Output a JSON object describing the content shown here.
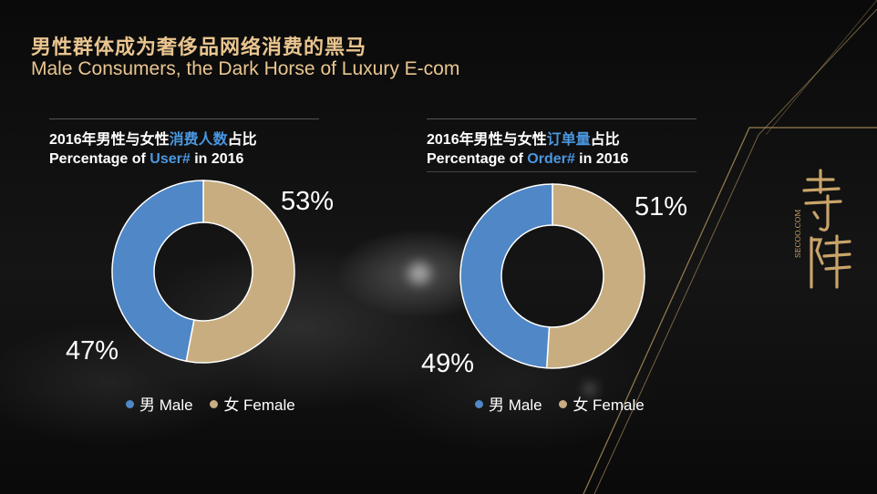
{
  "title": {
    "cn": "男性群体成为奢侈品网络消费的黑马",
    "en": "Male Consumers, the Dark Horse of Luxury E-com"
  },
  "colors": {
    "male": "#4f87c7",
    "female": "#c8ad80",
    "gold": "#e9c58f",
    "highlight": "#4b97e0"
  },
  "charts": [
    {
      "heading_cn_pre": "2016年男性与女性",
      "heading_cn_hl": "消费人数",
      "heading_cn_post": "占比",
      "heading_en_pre": "Percentage of ",
      "heading_en_hl": "User#",
      "heading_en_post": " in 2016",
      "male_label": "47%",
      "female_label": "53%",
      "legend_male": "男 Male",
      "legend_female": "女 Female"
    },
    {
      "heading_cn_pre": "2016年男性与女性",
      "heading_cn_hl": "订单量",
      "heading_cn_post": "占比",
      "heading_en_pre": "Percentage of ",
      "heading_en_hl": "Order#",
      "heading_en_post": " in 2016",
      "male_label": "49%",
      "female_label": "51%",
      "legend_male": "男 Male",
      "legend_female": "女 Female"
    }
  ],
  "chart_data": [
    {
      "type": "pie",
      "title": "2016年男性与女性消费人数占比 / Percentage of User# in 2016",
      "categories": [
        "男 Male",
        "女 Female"
      ],
      "values": [
        47,
        53
      ]
    },
    {
      "type": "pie",
      "title": "2016年男性与女性订单量占比 / Percentage of Order# in 2016",
      "categories": [
        "男 Male",
        "女 Female"
      ],
      "values": [
        49,
        51
      ]
    }
  ],
  "logo": {
    "brand_cn": "寺库",
    "brand_en": "SECOO.COM"
  }
}
